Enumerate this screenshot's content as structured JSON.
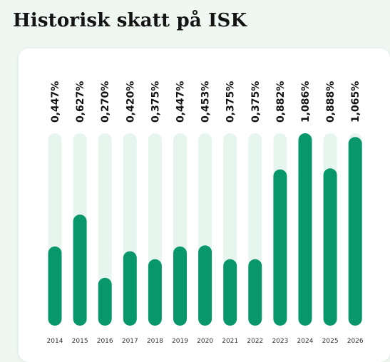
{
  "page": {
    "title": "Historisk skatt på ISK"
  },
  "colors": {
    "bar": "#07976a",
    "track": "#e6f5ee",
    "background": "#eef7f2",
    "card": "#ffffff"
  },
  "chart_data": {
    "type": "bar",
    "title": "",
    "xlabel": "",
    "ylabel": "",
    "categories": [
      "2014",
      "2015",
      "2016",
      "2017",
      "2018",
      "2019",
      "2020",
      "2021",
      "2022",
      "2023",
      "2024",
      "2025",
      "2026"
    ],
    "values": [
      0.447,
      0.627,
      0.27,
      0.42,
      0.375,
      0.447,
      0.453,
      0.375,
      0.375,
      0.882,
      1.086,
      0.888,
      1.065
    ],
    "value_labels": [
      "0,447%",
      "0,627%",
      "0,270%",
      "0,420%",
      "0,375%",
      "0,447%",
      "0,453%",
      "0,375%",
      "0,375%",
      "0,882%",
      "1,086%",
      "0,888%",
      "1,065%"
    ],
    "ylim": [
      0,
      1.086
    ],
    "grid": false,
    "legend": "none"
  }
}
